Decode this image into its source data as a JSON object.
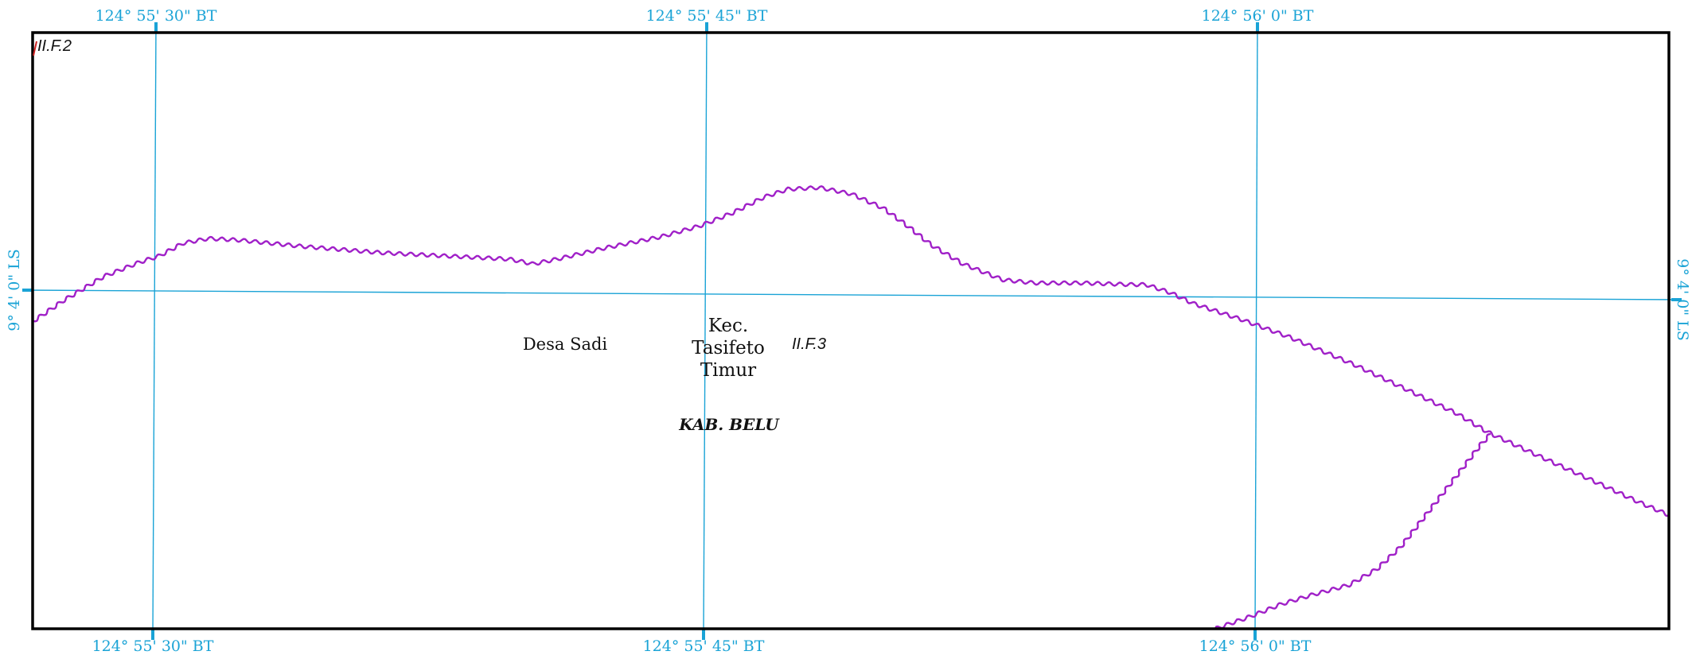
{
  "colors": {
    "graticule": "#1aa3d6",
    "boundary": "#a020c8",
    "frame": "#000000",
    "text": "#111111"
  },
  "graticule": {
    "top_labels": [
      "124° 55' 30\" BT",
      "124° 55' 45\" BT",
      "124° 56' 0\" BT"
    ],
    "bottom_labels": [
      "124° 55' 30\" BT",
      "124° 55' 45\" BT",
      "124° 56' 0\" BT"
    ],
    "left_label": "9° 4' 0\" LS",
    "right_label": "9° 4' 0\" LS"
  },
  "map_labels": {
    "sheet_top_left": "II.F.2",
    "sheet_center": "II.F.3",
    "village": "Desa Sadi",
    "district_line1": "Kec.",
    "district_line2": "Tasifeto",
    "district_line3": "Timur",
    "regency": "KAB. BELU"
  }
}
